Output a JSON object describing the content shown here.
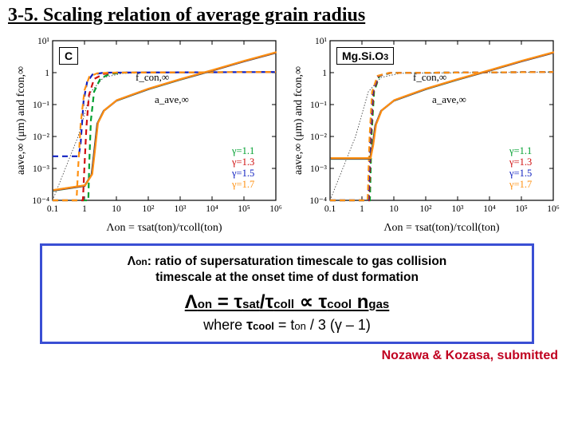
{
  "page": {
    "title": "3-5. Scaling relation of average grain radius"
  },
  "charts": [
    {
      "material_html": "C",
      "ylabel": "a_ave,∞ (μm) and f_con,∞",
      "xlabel_html": "Λ<sub>on</sub> = τ<sub>sat</sub>(t<sub>on</sub>)/τ<sub>coll</sub>(t<sub>on</sub>)",
      "xlim_log": [
        -1,
        6
      ],
      "ylim_log": [
        -4,
        1
      ],
      "xticks": [
        "0.1",
        "1",
        "10",
        "10²",
        "10³",
        "10⁴",
        "10⁵",
        "10⁶"
      ],
      "yticks": [
        "10⁻⁴",
        "10⁻³",
        "10⁻²",
        "10⁻¹",
        "1",
        "10¹"
      ],
      "series_colors": [
        "#00a030",
        "#d01010",
        "#1020c0",
        "#ff9010"
      ],
      "gamma_labels": [
        "γ=1.1",
        "γ=1.3",
        "γ=1.5",
        "γ=1.7"
      ],
      "legend_colors": [
        "#00a030",
        "#d01010",
        "#1020c0",
        "#ff9010"
      ],
      "fcon_annot": "f_con,∞",
      "aave_annot": "a_ave,∞",
      "line_width": 2.2,
      "dash_f": "7,5",
      "dash_guide": "1.5,2",
      "background_color": "#ffffff",
      "grid_color": "#000000",
      "aave_line": {
        "pts": [
          [
            -1,
            -3.7
          ],
          [
            0,
            -3.55
          ],
          [
            0.22,
            -3.2
          ],
          [
            0.3,
            -2.5
          ],
          [
            0.4,
            -1.6
          ],
          [
            0.6,
            -1.2
          ],
          [
            1.0,
            -0.88
          ],
          [
            2.0,
            -0.52
          ],
          [
            3.0,
            -0.22
          ],
          [
            4.0,
            0.06
          ],
          [
            5.0,
            0.35
          ],
          [
            6.0,
            0.62
          ]
        ]
      },
      "fcon_set": [
        {
          "color": "#00a030",
          "pts": [
            [
              -1,
              -4
            ],
            [
              0.12,
              -4
            ],
            [
              0.15,
              -2.8
            ],
            [
              0.2,
              -1.5
            ],
            [
              0.3,
              -0.6
            ],
            [
              0.5,
              -0.18
            ],
            [
              0.8,
              -0.04
            ],
            [
              1.2,
              0
            ],
            [
              6,
              0.02
            ]
          ]
        },
        {
          "color": "#d01010",
          "pts": [
            [
              -1,
              -4
            ],
            [
              -0.05,
              -4
            ],
            [
              0.0,
              -2.9
            ],
            [
              0.06,
              -1.7
            ],
            [
              0.14,
              -0.7
            ],
            [
              0.3,
              -0.2
            ],
            [
              0.6,
              -0.04
            ],
            [
              1.0,
              0
            ],
            [
              6,
              0.02
            ]
          ]
        },
        {
          "color": "#1020c0",
          "pts": [
            [
              -1,
              -2.62
            ],
            [
              -0.18,
              -2.62
            ],
            [
              -0.12,
              -2.2
            ],
            [
              -0.03,
              -0.9
            ],
            [
              0.08,
              -0.3
            ],
            [
              0.25,
              -0.06
            ],
            [
              0.6,
              0
            ],
            [
              6,
              0.02
            ]
          ]
        },
        {
          "color": "#ff9010",
          "pts": [
            [
              -1,
              -4
            ],
            [
              -0.25,
              -4
            ],
            [
              -0.2,
              -3.0
            ],
            [
              -0.12,
              -1.6
            ],
            [
              0.0,
              -0.55
            ],
            [
              0.15,
              -0.13
            ],
            [
              0.4,
              -0.02
            ],
            [
              0.8,
              0
            ],
            [
              6,
              0.02
            ]
          ]
        }
      ],
      "guide_line": {
        "pts": [
          [
            -1,
            -4
          ],
          [
            -0.2,
            -2.0
          ],
          [
            0.2,
            -0.6
          ],
          [
            0.6,
            -0.15
          ],
          [
            1.2,
            -0.02
          ],
          [
            6,
            0.02
          ]
        ]
      }
    },
    {
      "material_html": "Mg.Si.O<span style=\"font-size:11px\">3</span>",
      "ylabel": "a_ave,∞ (μm) and f_con,∞",
      "xlabel_html": "Λ<sub>on</sub> = τ<sub>sat</sub>(t<sub>on</sub>)/τ<sub>coll</sub>(t<sub>on</sub>)",
      "xlim_log": [
        -1,
        6
      ],
      "ylim_log": [
        -4,
        1
      ],
      "xticks": [
        "0.1",
        "1",
        "10",
        "10²",
        "10³",
        "10⁴",
        "10⁵",
        "10⁶"
      ],
      "yticks": [
        "10⁻⁴",
        "10⁻³",
        "10⁻²",
        "10⁻¹",
        "1",
        "10¹"
      ],
      "series_colors": [
        "#00a030",
        "#d01010",
        "#1020c0",
        "#ff9010"
      ],
      "gamma_labels": [
        "γ=1.1",
        "γ=1.3",
        "γ=1.5",
        "γ=1.7"
      ],
      "legend_colors": [
        "#00a030",
        "#d01010",
        "#1020c0",
        "#ff9010"
      ],
      "fcon_annot": "f_con,∞",
      "aave_annot": "a_ave,∞",
      "line_width": 2.2,
      "dash_f": "7,5",
      "dash_guide": "1.5,2",
      "background_color": "#ffffff",
      "grid_color": "#000000",
      "aave_line": {
        "pts": [
          [
            -1,
            -2.7
          ],
          [
            0.25,
            -2.7
          ],
          [
            0.33,
            -2.3
          ],
          [
            0.42,
            -1.65
          ],
          [
            0.6,
            -1.2
          ],
          [
            1.0,
            -0.88
          ],
          [
            2.0,
            -0.52
          ],
          [
            3.0,
            -0.22
          ],
          [
            4.0,
            0.06
          ],
          [
            5.0,
            0.35
          ],
          [
            6.0,
            0.62
          ]
        ]
      },
      "fcon_set": [
        {
          "color": "#00a030",
          "pts": [
            [
              -1,
              -4
            ],
            [
              0.25,
              -4
            ],
            [
              0.3,
              -2.0
            ],
            [
              0.38,
              -0.6
            ],
            [
              0.55,
              -0.1
            ],
            [
              0.9,
              -0.01
            ],
            [
              6,
              0.02
            ]
          ]
        },
        {
          "color": "#d01010",
          "pts": [
            [
              -1,
              -4
            ],
            [
              0.22,
              -4
            ],
            [
              0.28,
              -2.0
            ],
            [
              0.36,
              -0.6
            ],
            [
              0.53,
              -0.1
            ],
            [
              0.88,
              -0.01
            ],
            [
              6,
              0.02
            ]
          ]
        },
        {
          "color": "#1020c0",
          "pts": [
            [
              -1,
              -4
            ],
            [
              0.2,
              -4
            ],
            [
              0.26,
              -2.0
            ],
            [
              0.34,
              -0.6
            ],
            [
              0.51,
              -0.1
            ],
            [
              0.86,
              -0.01
            ],
            [
              6,
              0.02
            ]
          ]
        },
        {
          "color": "#ff9010",
          "pts": [
            [
              -1,
              -4
            ],
            [
              0.18,
              -4
            ],
            [
              0.24,
              -2.0
            ],
            [
              0.32,
              -0.6
            ],
            [
              0.49,
              -0.1
            ],
            [
              0.84,
              -0.01
            ],
            [
              6,
              0.02
            ]
          ]
        }
      ],
      "guide_line": {
        "pts": [
          [
            -1,
            -4
          ],
          [
            -0.2,
            -2.0
          ],
          [
            0.2,
            -0.6
          ],
          [
            0.6,
            -0.15
          ],
          [
            1.2,
            -0.02
          ],
          [
            6,
            0.02
          ]
        ]
      }
    }
  ],
  "info_box": {
    "line1_html": "Λ<span style=\"font-size:12px\">on</span>: ratio of supersaturation timescale to gas collision<br>timescale at the onset time of dust formation",
    "eq_main_html": "Λ<span class=\"small\">on</span> = τ<span class=\"small\">sat</span>/τ<span class=\"small\">coll</span> ∝ τ<span class=\"small\">cool</span> n<span class=\"small\">gas</span>",
    "eq_sub_html": "where <span class=\"b\">τ</span><span class=\"b\" style=\"font-size:13px\">cool</span> = t<span style=\"font-size:13px\">on</span> / 3 (γ – 1)"
  },
  "credit": "Nozawa & Kozasa, submitted"
}
